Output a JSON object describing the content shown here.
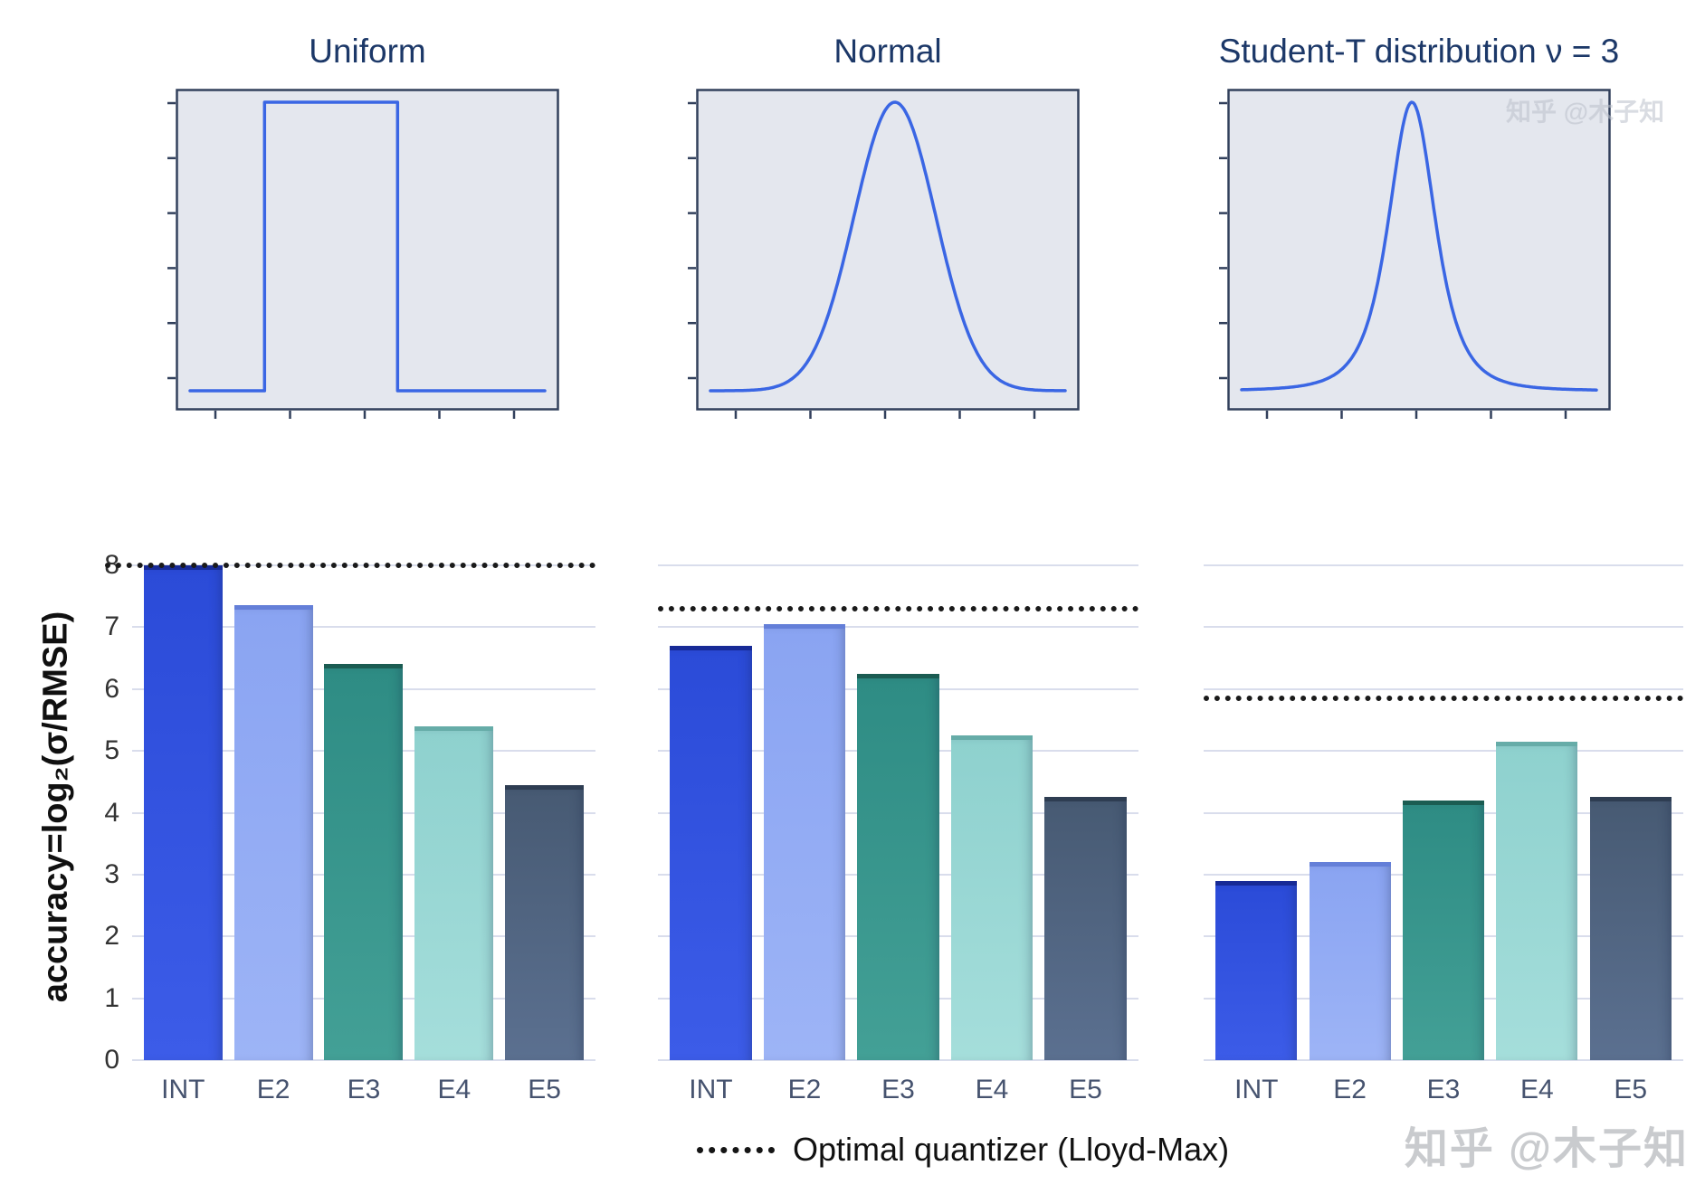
{
  "axis": {
    "ylabel": "accuracy=log₂(σ/RMSE)",
    "y_ticks": [
      0,
      1,
      2,
      3,
      4,
      5,
      6,
      7,
      8
    ],
    "ymax": 8
  },
  "chart_data": [
    {
      "type": "line",
      "panel": "density",
      "title": "Uniform",
      "x_range": [
        0,
        1
      ],
      "pdf": {
        "kind": "uniform",
        "a": 0.21,
        "b": 0.585
      },
      "note": "probability density curve, axes unlabeled"
    },
    {
      "type": "line",
      "panel": "density",
      "title": "Normal",
      "x_range": [
        0,
        1
      ],
      "pdf": {
        "kind": "normal",
        "mean": 0.52,
        "sd": 0.115
      },
      "note": "probability density curve, axes unlabeled"
    },
    {
      "type": "line",
      "panel": "density",
      "title": "Student-T distribution ν = 3",
      "x_range": [
        0,
        1
      ],
      "pdf": {
        "kind": "student_t",
        "nu": 3,
        "center": 0.48,
        "scale": 0.07
      },
      "note": "probability density curve, axes unlabeled"
    },
    {
      "type": "bar",
      "title": "Uniform",
      "categories": [
        "INT",
        "E2",
        "E3",
        "E4",
        "E5"
      ],
      "values": [
        8.0,
        7.35,
        6.4,
        5.4,
        4.45
      ],
      "optimal_lloyd_max": 8.0,
      "ylim": [
        0,
        8
      ],
      "ylabel": "accuracy=log₂(σ/RMSE)",
      "grid": true,
      "legend_position": "bottom"
    },
    {
      "type": "bar",
      "title": "Normal",
      "categories": [
        "INT",
        "E2",
        "E3",
        "E4",
        "E5"
      ],
      "values": [
        6.7,
        7.05,
        6.25,
        5.25,
        4.25
      ],
      "optimal_lloyd_max": 7.3,
      "ylim": [
        0,
        8
      ],
      "grid": true
    },
    {
      "type": "bar",
      "title": "Student-T ν = 3",
      "categories": [
        "INT",
        "E2",
        "E3",
        "E4",
        "E5"
      ],
      "values": [
        2.9,
        3.2,
        4.2,
        5.15,
        4.25
      ],
      "optimal_lloyd_max": 5.85,
      "ylim": [
        0,
        8
      ],
      "grid": true
    }
  ],
  "legend": {
    "marker": "dotted-line",
    "label": "Optimal quantizer (Lloyd-Max)"
  },
  "watermark": {
    "text": "知乎 @木子知",
    "faint_text": "知乎 @木子知"
  },
  "colors": {
    "curve": "#3a66e4",
    "plot_bg": "#e4e7ee",
    "plot_border": "#32405c",
    "grid": "#d9ddec",
    "dotted_line": "#1a1a1a",
    "title": "#1c3868",
    "x_tick": "#46536f",
    "y_tick": "#333333",
    "bar_colors": [
      {
        "name": "INT",
        "base": "#2b4bd8",
        "light": "#3c5ce8",
        "dark": "#172a96"
      },
      {
        "name": "E2",
        "base": "#8aa4f2",
        "light": "#9db4f6",
        "dark": "#647fd8"
      },
      {
        "name": "E3",
        "base": "#2e8c84",
        "light": "#43a096",
        "dark": "#1b5c52"
      },
      {
        "name": "E4",
        "base": "#8ed1ce",
        "light": "#a5dedb",
        "dark": "#66aca8"
      },
      {
        "name": "E5",
        "base": "#475a73",
        "light": "#5b7090",
        "dark": "#2e3d52"
      }
    ]
  }
}
